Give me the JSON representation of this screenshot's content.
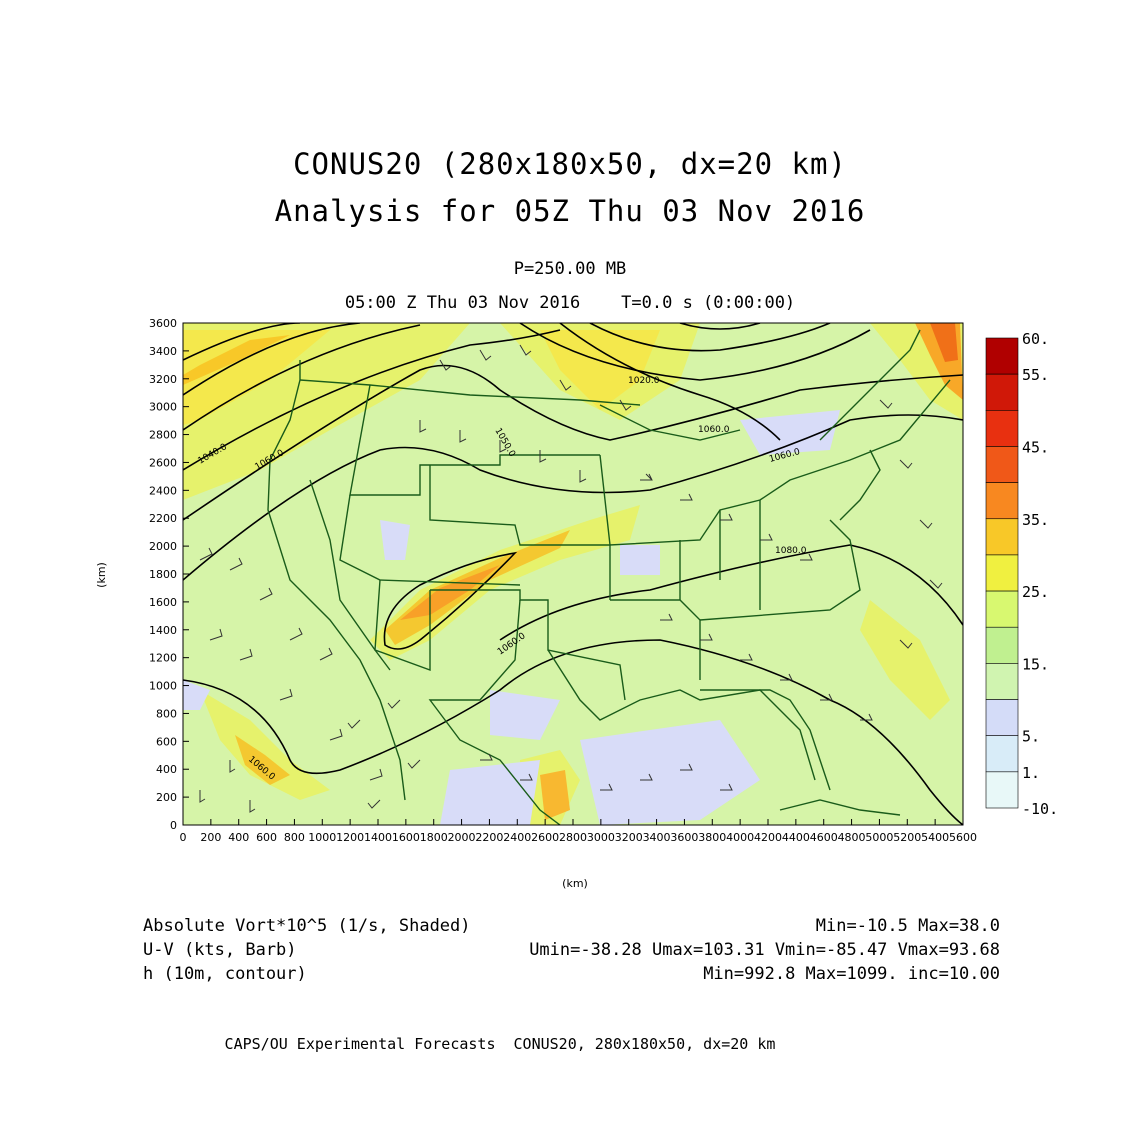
{
  "titles": {
    "line1": "CONUS20 (280x180x50, dx=20 km)",
    "line2": "Analysis for 05Z Thu 03 Nov 2016",
    "level": "P=250.00 MB",
    "time": "05:00 Z Thu 03 Nov 2016    T=0.0 s (0:00:00)"
  },
  "axes": {
    "xlabel": "(km)",
    "ylabel": "(km)",
    "x_ticks": [
      "0",
      "200",
      "400",
      "600",
      "800",
      "1000",
      "1200",
      "1400",
      "1600",
      "1800",
      "2000",
      "2200",
      "2400",
      "2600",
      "2800",
      "3000",
      "3200",
      "3400",
      "3600",
      "3800",
      "4000",
      "4200",
      "4400",
      "4600",
      "4800",
      "5000",
      "5200",
      "5400",
      "5600"
    ],
    "y_ticks": [
      "0",
      "200",
      "400",
      "600",
      "800",
      "1000",
      "1200",
      "1400",
      "1600",
      "1800",
      "2000",
      "2200",
      "2400",
      "2600",
      "2800",
      "3000",
      "3200",
      "3400",
      "3600"
    ],
    "x_range_km": [
      0,
      5600
    ],
    "y_range_km": [
      0,
      3600
    ]
  },
  "colorbar": {
    "labels": [
      "60.",
      "55.",
      "45.",
      "35.",
      "25.",
      "15.",
      "5.",
      "1.",
      "-10."
    ],
    "colors": [
      "#b00000",
      "#d01808",
      "#e83010",
      "#f05818",
      "#f88820",
      "#f8c828",
      "#f0f040",
      "#d8f870",
      "#c0f090",
      "#d0f4b0",
      "#d4dcf8",
      "#d8ecf8",
      "#e8f8f8"
    ]
  },
  "contour_labels": [
    "1020.0",
    "1050.0",
    "1040.0",
    "1060.0",
    "1060.0",
    "1060.0",
    "1080.0",
    "1060.0",
    "1060.0"
  ],
  "legend": {
    "vort_label": "Absolute Vort*10^5 (1/s, Shaded)",
    "vort_stats": "Min=-10.5 Max=38.0",
    "wind_label": "U-V (kts, Barb)",
    "wind_stats": "Umin=-38.28 Umax=103.31 Vmin=-85.47 Vmax=93.68",
    "height_label": "h (10m, contour)",
    "height_stats": "Min=992.8 Max=1099. inc=10.00"
  },
  "footer": "CAPS/OU Experimental Forecasts  CONUS20, 280x180x50, dx=20 km"
}
